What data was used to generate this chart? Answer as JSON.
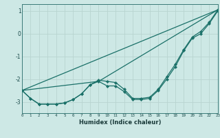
{
  "title": "",
  "xlabel": "Humidex (Indice chaleur)",
  "xlim": [
    0,
    23
  ],
  "ylim": [
    -3.5,
    1.3
  ],
  "bg_color": "#cde8e5",
  "grid_color": "#b8d4d0",
  "line_color": "#1a7068",
  "xticks": [
    0,
    1,
    2,
    3,
    4,
    5,
    6,
    7,
    8,
    9,
    10,
    11,
    12,
    13,
    14,
    15,
    16,
    17,
    18,
    19,
    20,
    21,
    22,
    23
  ],
  "yticks": [
    -3,
    -2,
    -1,
    0,
    1
  ],
  "series_curve1_x": [
    0,
    1,
    2,
    3,
    4,
    5,
    6,
    7,
    8,
    9,
    10,
    11,
    12,
    13,
    14,
    15,
    16,
    17,
    18,
    19,
    20,
    21,
    22,
    23
  ],
  "series_curve1_y": [
    -2.5,
    -2.85,
    -3.1,
    -3.1,
    -3.1,
    -3.05,
    -2.9,
    -2.65,
    -2.25,
    -2.1,
    -2.3,
    -2.3,
    -2.55,
    -2.9,
    -2.9,
    -2.85,
    -2.5,
    -2.0,
    -1.45,
    -0.75,
    -0.2,
    0.0,
    0.45,
    1.0
  ],
  "series_curve2_x": [
    0,
    1,
    2,
    3,
    4,
    5,
    6,
    7,
    8,
    9,
    10,
    11,
    12,
    13,
    14,
    15,
    16,
    17,
    18,
    19,
    20,
    21,
    22,
    23
  ],
  "series_curve2_y": [
    -2.5,
    -2.85,
    -3.1,
    -3.1,
    -3.1,
    -3.05,
    -2.9,
    -2.65,
    -2.25,
    -2.05,
    -2.1,
    -2.15,
    -2.45,
    -2.85,
    -2.85,
    -2.8,
    -2.45,
    -1.9,
    -1.35,
    -0.7,
    -0.15,
    0.1,
    0.5,
    1.05
  ],
  "series_line1_x": [
    0,
    23
  ],
  "series_line1_y": [
    -2.5,
    1.05
  ],
  "series_line2_x": [
    0,
    9,
    23
  ],
  "series_line2_y": [
    -2.5,
    -2.1,
    1.05
  ]
}
